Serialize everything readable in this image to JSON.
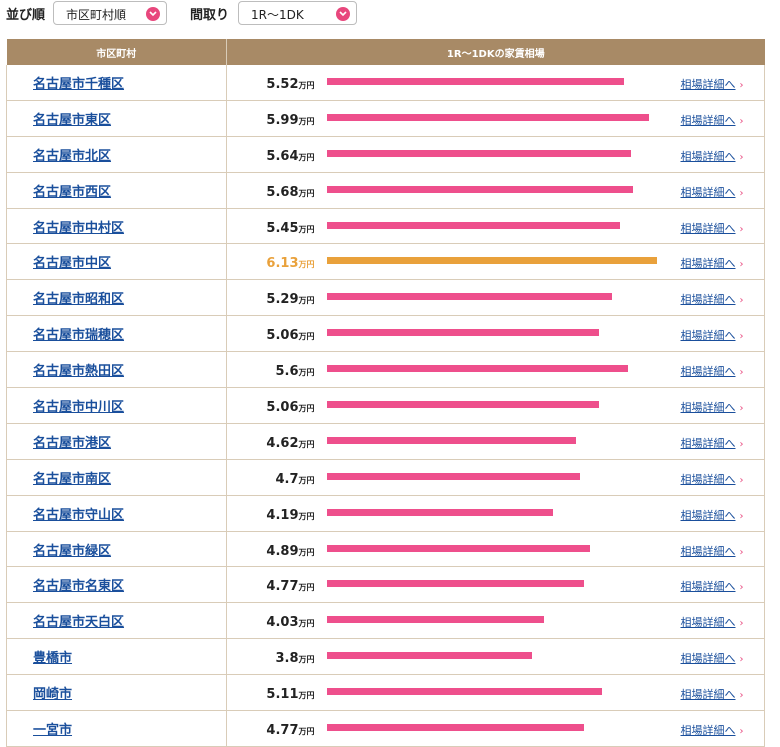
{
  "controls": {
    "sort_label": "並び順",
    "sort_value": "市区町村順",
    "floorplan_label": "間取り",
    "floorplan_value": "1R〜1DK"
  },
  "table": {
    "col_city": "市区町村",
    "col_rent": "1R〜1DKの家賃相場",
    "unit": "万円",
    "detail_label": "相場詳細へ",
    "highlight_color": "#e9a13b",
    "bar_color": "#ee4f8c",
    "max_value": 6.13,
    "rows": [
      {
        "city": "名古屋市千種区",
        "value": "5.52"
      },
      {
        "city": "名古屋市東区",
        "value": "5.99"
      },
      {
        "city": "名古屋市北区",
        "value": "5.64"
      },
      {
        "city": "名古屋市西区",
        "value": "5.68"
      },
      {
        "city": "名古屋市中村区",
        "value": "5.45"
      },
      {
        "city": "名古屋市中区",
        "value": "6.13",
        "highlight": true
      },
      {
        "city": "名古屋市昭和区",
        "value": "5.29"
      },
      {
        "city": "名古屋市瑞穂区",
        "value": "5.06"
      },
      {
        "city": "名古屋市熱田区",
        "value": "5.6"
      },
      {
        "city": "名古屋市中川区",
        "value": "5.06"
      },
      {
        "city": "名古屋市港区",
        "value": "4.62"
      },
      {
        "city": "名古屋市南区",
        "value": "4.7"
      },
      {
        "city": "名古屋市守山区",
        "value": "4.19"
      },
      {
        "city": "名古屋市緑区",
        "value": "4.89"
      },
      {
        "city": "名古屋市名東区",
        "value": "4.77"
      },
      {
        "city": "名古屋市天白区",
        "value": "4.03"
      },
      {
        "city": "豊橋市",
        "value": "3.8"
      },
      {
        "city": "岡崎市",
        "value": "5.11"
      },
      {
        "city": "一宮市",
        "value": "4.77"
      }
    ]
  }
}
